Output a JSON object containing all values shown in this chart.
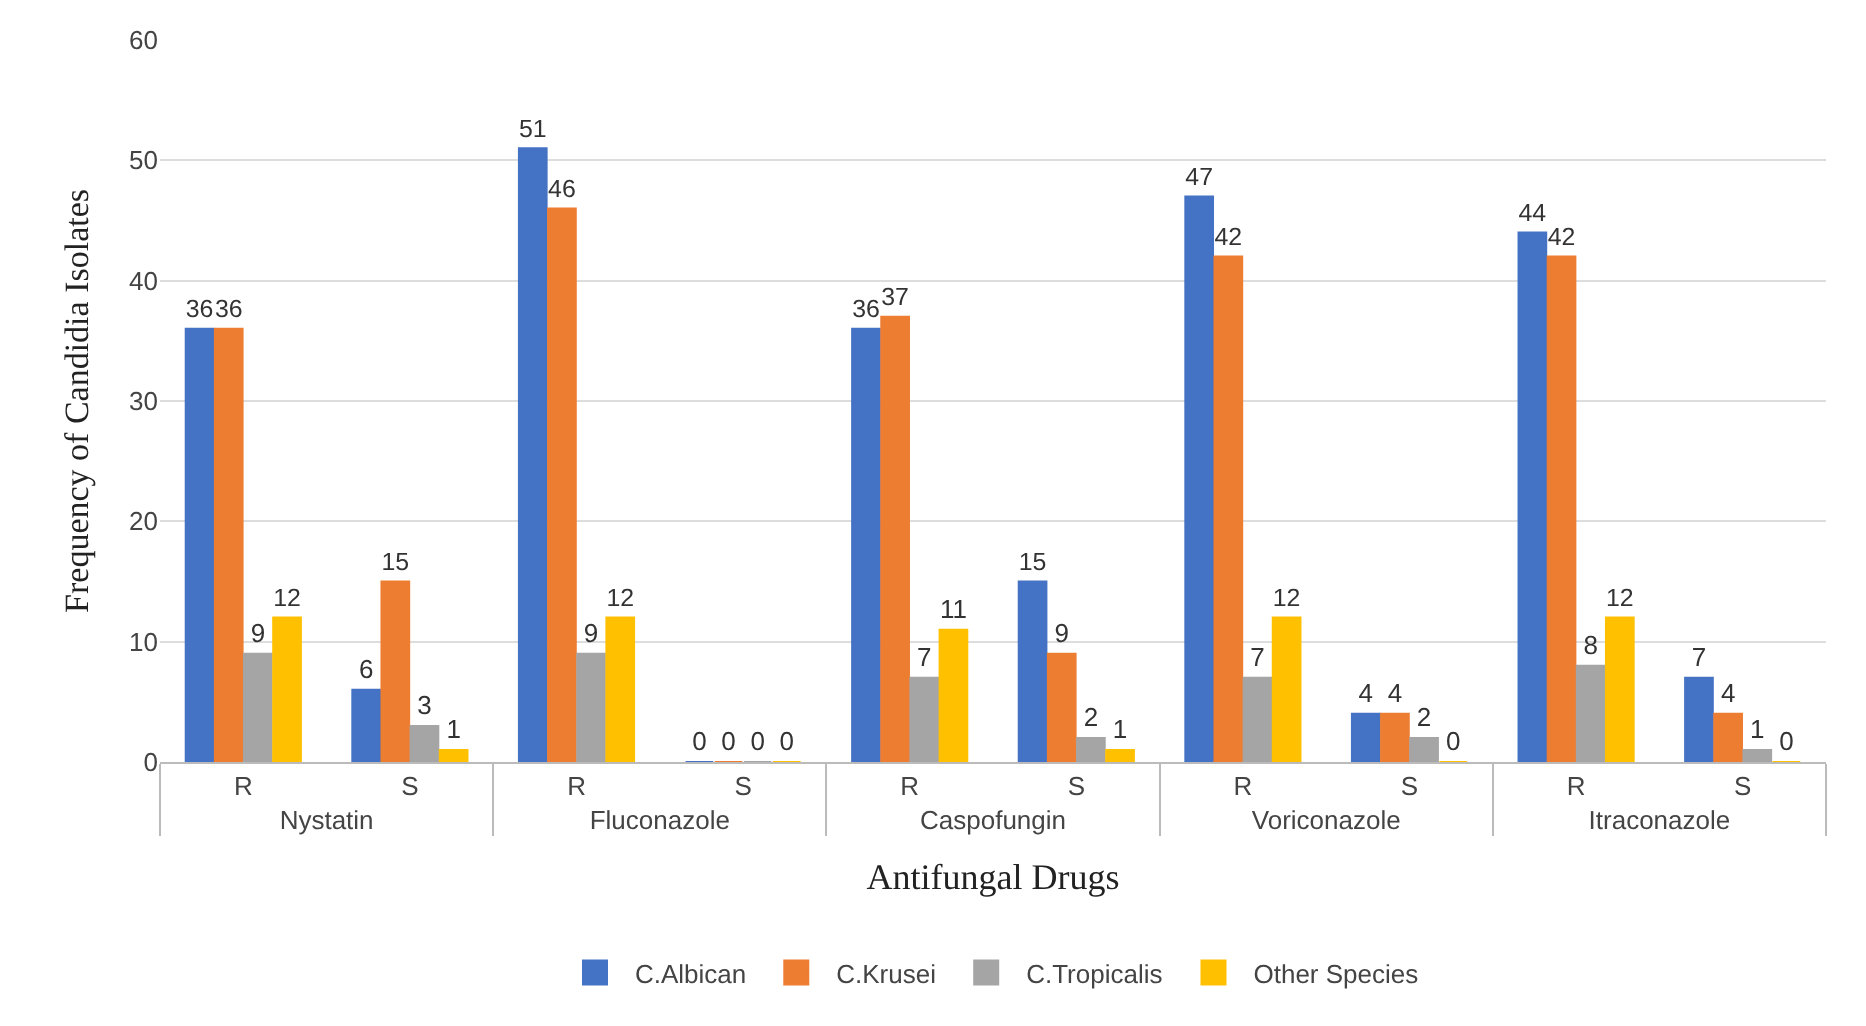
{
  "chart_data": {
    "type": "bar",
    "xlabel": "Antifungal Drugs",
    "ylabel": "Frequency of Candidia Isolates",
    "categories": [
      "R",
      "S",
      "R",
      "S",
      "R",
      "S",
      "R",
      "S",
      "R",
      "S"
    ],
    "annotations": [
      "Nystatin",
      "Fluconazole",
      "Caspofungin",
      "Voriconazole",
      "Itraconazole"
    ],
    "series": [
      {
        "name": "C.Albican",
        "color": "#4472c4",
        "values": [
          36,
          6,
          51,
          0,
          36,
          15,
          47,
          4,
          44,
          7
        ]
      },
      {
        "name": "C.Krusei",
        "color": "#ed7d31",
        "values": [
          36,
          15,
          46,
          0,
          37,
          9,
          42,
          4,
          42,
          4
        ]
      },
      {
        "name": "C.Tropicalis",
        "color": "#a5a5a5",
        "values": [
          9,
          3,
          9,
          0,
          7,
          2,
          7,
          2,
          8,
          1
        ]
      },
      {
        "name": "Other Species",
        "color": "#ffc000",
        "values": [
          12,
          1,
          12,
          0,
          11,
          1,
          12,
          0,
          12,
          0
        ]
      }
    ],
    "ylim": [
      0,
      60
    ],
    "yticks": [
      0,
      10,
      20,
      30,
      40,
      50,
      60
    ],
    "grid": "y",
    "legend": "bottom",
    "data_labels": true
  }
}
